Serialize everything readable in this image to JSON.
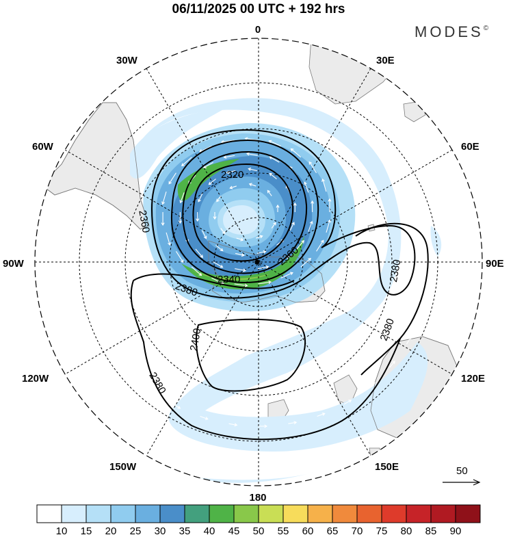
{
  "title": "06/11/2025  00 UTC  + 192 hrs",
  "brand": "MODES",
  "brand_mark": "©",
  "projection": "south-polar-stereographic",
  "longitude_labels": {
    "top": "0",
    "bottom": "180",
    "left": "90W",
    "right": "90E",
    "upper_left": "30W",
    "upper_right": "30E",
    "left_upper": "60W",
    "right_upper": "60E",
    "left_lower": "120W",
    "right_lower": "120E",
    "lower_left": "150W",
    "lower_right": "150E"
  },
  "contours": {
    "field": "geopotential height",
    "labels": [
      "2320",
      "2340",
      "2360",
      "2360",
      "2380",
      "2380",
      "2380",
      "2380",
      "2400"
    ]
  },
  "vector_reference": {
    "label": "50"
  },
  "colorbar": {
    "field": "wind speed",
    "ticks": [
      "10",
      "15",
      "20",
      "25",
      "30",
      "35",
      "40",
      "45",
      "50",
      "55",
      "60",
      "65",
      "70",
      "75",
      "80",
      "85",
      "90"
    ],
    "colors": [
      "#ffffff",
      "#d7eefd",
      "#b5e0f7",
      "#90ccef",
      "#6aafe0",
      "#4a8ec9",
      "#43a07e",
      "#4fb347",
      "#89c84a",
      "#c9de55",
      "#f7dc5b",
      "#f6b14a",
      "#f08a3c",
      "#e8632f",
      "#de3b2b",
      "#c62328",
      "#b01a22",
      "#8f1119"
    ]
  },
  "colors": {
    "land": "#ebebeb",
    "coast": "#7a7a7a",
    "contour": "#000000",
    "grid": "#000000"
  }
}
